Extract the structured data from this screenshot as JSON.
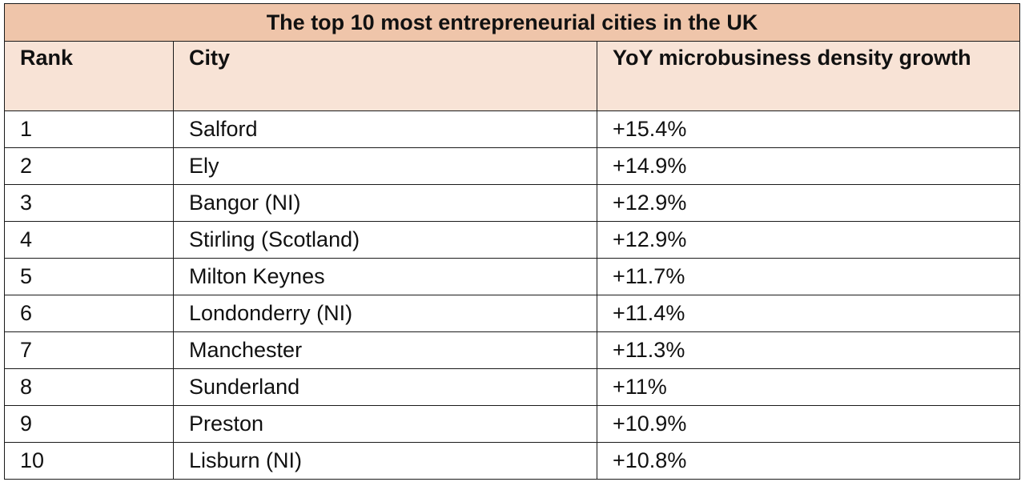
{
  "table": {
    "title": "The top 10 most entrepreneurial cities in the UK",
    "headers": {
      "rank": "Rank",
      "city": "City",
      "growth": "YoY microbusiness density growth"
    },
    "rows": [
      {
        "rank": "1",
        "city": "Salford",
        "growth": "+15.4%"
      },
      {
        "rank": "2",
        "city": "Ely",
        "growth": "+14.9%"
      },
      {
        "rank": "3",
        "city": "Bangor (NI)",
        "growth": "+12.9%"
      },
      {
        "rank": "4",
        "city": "Stirling (Scotland)",
        "growth": "+12.9%"
      },
      {
        "rank": "5",
        "city": "Milton Keynes",
        "growth": "+11.7%"
      },
      {
        "rank": "6",
        "city": "Londonderry (NI)",
        "growth": "+11.4%"
      },
      {
        "rank": "7",
        "city": "Manchester",
        "growth": "+11.3%"
      },
      {
        "rank": "8",
        "city": "Sunderland",
        "growth": "+11%"
      },
      {
        "rank": "9",
        "city": "Preston",
        "growth": "+10.9%"
      },
      {
        "rank": "10",
        "city": "Lisburn (NI)",
        "growth": "+10.8%"
      }
    ]
  },
  "colors": {
    "title_background": "#efc5aa",
    "header_background": "#f8e3d6",
    "border": "#1a1a1a"
  }
}
